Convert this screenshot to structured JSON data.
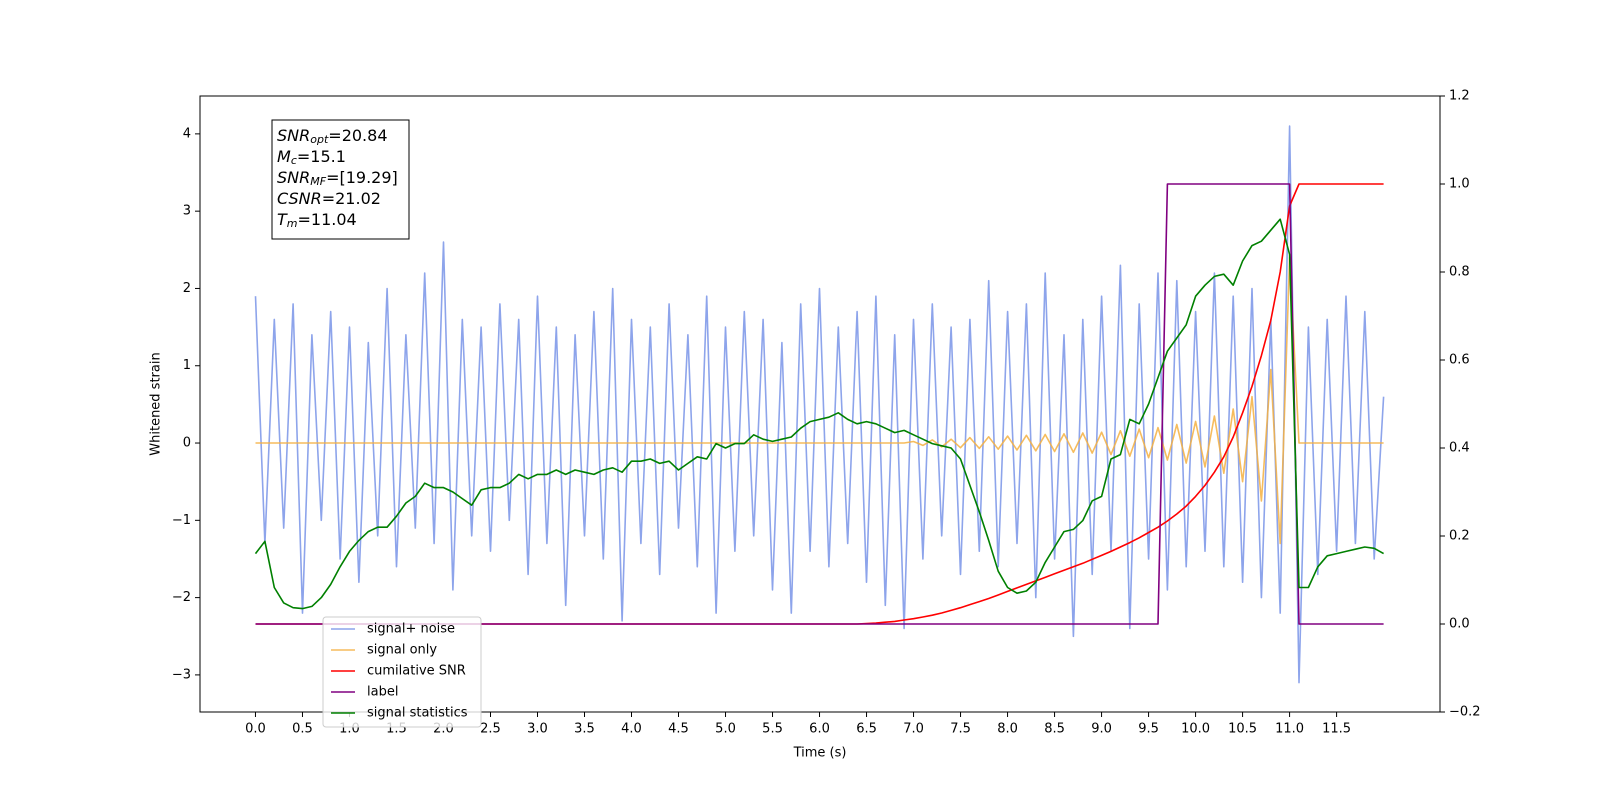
{
  "chart_data": {
    "type": "line",
    "xlabel": "Time (s)",
    "ylabel": "Whitened strain",
    "xlim": [
      -0.59,
      12.6
    ],
    "ylim": [
      -3.48,
      4.49
    ],
    "y2lim": [
      -0.2,
      1.2
    ],
    "xticks": [
      {
        "value": 0,
        "label": "0.0"
      },
      {
        "value": 0.5,
        "label": "0.5"
      },
      {
        "value": 1,
        "label": "1.0"
      },
      {
        "value": 1.5,
        "label": "1.5"
      },
      {
        "value": 2,
        "label": "2.0"
      },
      {
        "value": 2.5,
        "label": "2.5"
      },
      {
        "value": 3,
        "label": "3.0"
      },
      {
        "value": 3.5,
        "label": "3.5"
      },
      {
        "value": 4,
        "label": "4.0"
      },
      {
        "value": 4.5,
        "label": "4.5"
      },
      {
        "value": 5,
        "label": "5.0"
      },
      {
        "value": 5.5,
        "label": "5.5"
      },
      {
        "value": 6,
        "label": "6.0"
      },
      {
        "value": 6.5,
        "label": "6.5"
      },
      {
        "value": 7,
        "label": "7.0"
      },
      {
        "value": 7.5,
        "label": "7.5"
      },
      {
        "value": 8,
        "label": "8.0"
      },
      {
        "value": 8.5,
        "label": "8.5"
      },
      {
        "value": 9,
        "label": "9.0"
      },
      {
        "value": 9.5,
        "label": "9.5"
      },
      {
        "value": 10,
        "label": "10.0"
      },
      {
        "value": 10.5,
        "label": "10.5"
      },
      {
        "value": 11,
        "label": "11.0"
      },
      {
        "value": 11.5,
        "label": "11.5"
      }
    ],
    "yticks": [
      {
        "value": -3,
        "label": "−3"
      },
      {
        "value": -2,
        "label": "−2"
      },
      {
        "value": -1,
        "label": "−1"
      },
      0,
      1,
      2,
      3,
      4
    ],
    "y2ticks": [
      {
        "value": -0.2,
        "label": "−0.2"
      },
      {
        "value": 0,
        "label": "0.0"
      },
      0.2,
      0.4,
      0.6,
      0.8,
      {
        "value": 1,
        "label": "1.0"
      },
      1.2
    ],
    "annotations": [
      {
        "main": "SNR",
        "sub": "opt",
        "rest": "=20.84"
      },
      {
        "main": "M",
        "sub": "c",
        "rest": "=15.1"
      },
      {
        "main": "SNR",
        "sub": "MF",
        "rest": "=[19.29]"
      },
      {
        "main": "CSNR",
        "rest": "=21.02"
      },
      {
        "main": "T",
        "sub": "m",
        "rest": "=11.04"
      }
    ],
    "x": [
      0,
      0.1,
      0.2,
      0.3,
      0.4,
      0.5,
      0.6,
      0.7,
      0.8,
      0.9,
      1,
      1.1,
      1.2,
      1.3,
      1.4,
      1.5,
      1.6,
      1.7,
      1.8,
      1.9,
      2,
      2.1,
      2.2,
      2.3,
      2.4,
      2.5,
      2.6,
      2.7,
      2.8,
      2.9,
      3,
      3.1,
      3.2,
      3.3,
      3.4,
      3.5,
      3.6,
      3.7,
      3.8,
      3.9,
      4,
      4.1,
      4.2,
      4.3,
      4.4,
      4.5,
      4.6,
      4.7,
      4.8,
      4.9,
      5,
      5.1,
      5.2,
      5.3,
      5.4,
      5.5,
      5.6,
      5.7,
      5.8,
      5.9,
      6,
      6.1,
      6.2,
      6.3,
      6.4,
      6.5,
      6.6,
      6.7,
      6.8,
      6.9,
      7,
      7.1,
      7.2,
      7.3,
      7.4,
      7.5,
      7.6,
      7.7,
      7.8,
      7.9,
      8,
      8.1,
      8.2,
      8.3,
      8.4,
      8.5,
      8.6,
      8.7,
      8.8,
      8.9,
      9,
      9.1,
      9.2,
      9.3,
      9.4,
      9.5,
      9.6,
      9.7,
      9.8,
      9.9,
      10,
      10.1,
      10.2,
      10.3,
      10.4,
      10.5,
      10.6,
      10.7,
      10.8,
      10.9,
      11,
      11.1,
      11.2,
      11.3,
      11.4,
      11.5,
      11.6,
      11.7,
      11.8,
      11.9,
      12
    ],
    "series": [
      {
        "name": "signal+ noise",
        "color": "#7994e8",
        "axis": "y",
        "values": [
          1.9,
          -1.3,
          1.6,
          -1.1,
          1.8,
          -2.2,
          1.4,
          -1.0,
          1.7,
          -1.5,
          1.5,
          -1.8,
          1.3,
          -1.2,
          2.0,
          -1.6,
          1.4,
          -1.1,
          2.2,
          -1.3,
          2.6,
          -1.9,
          1.6,
          -1.2,
          1.5,
          -1.4,
          1.8,
          -1.0,
          1.6,
          -1.7,
          1.9,
          -1.3,
          1.5,
          -2.1,
          1.4,
          -1.2,
          1.7,
          -1.5,
          2.0,
          -2.3,
          1.6,
          -1.3,
          1.5,
          -1.7,
          1.8,
          -1.1,
          1.4,
          -1.6,
          1.9,
          -2.2,
          1.5,
          -1.4,
          1.7,
          -1.2,
          1.6,
          -1.9,
          1.3,
          -2.2,
          1.8,
          -1.4,
          2.0,
          -1.6,
          1.5,
          -1.3,
          1.7,
          -1.8,
          1.9,
          -2.1,
          1.4,
          -2.4,
          1.6,
          -1.5,
          1.8,
          -1.2,
          1.5,
          -1.7,
          1.6,
          -1.4,
          2.1,
          -1.6,
          1.7,
          -1.3,
          1.8,
          -2.0,
          2.2,
          -1.5,
          1.4,
          -2.5,
          1.6,
          -1.7,
          1.9,
          -1.4,
          2.3,
          -2.4,
          1.8,
          -1.5,
          2.2,
          -1.9,
          2.1,
          -1.6,
          1.7,
          -1.4,
          2.2,
          -1.6,
          1.9,
          -1.8,
          2.0,
          -2.0,
          1.6,
          -2.2,
          4.1,
          -3.1,
          1.5,
          -1.7,
          1.6,
          -1.4,
          1.9,
          -1.3,
          1.7,
          -1.5,
          0.6
        ]
      },
      {
        "name": "signal only",
        "color": "#f5b041",
        "axis": "y",
        "values": [
          0,
          0,
          0,
          0,
          0,
          0,
          0,
          0,
          0,
          0,
          0,
          0,
          0,
          0,
          0,
          0,
          0,
          0,
          0,
          0,
          0,
          0,
          0,
          0,
          0,
          0,
          0,
          0,
          0,
          0,
          0,
          0,
          0,
          0,
          0,
          0,
          0,
          0,
          0,
          0,
          0,
          0,
          0,
          0,
          0,
          0,
          0,
          0,
          0,
          0,
          0,
          0,
          0,
          0,
          0,
          0,
          0,
          0,
          0,
          0,
          0,
          0,
          0,
          0,
          0,
          0,
          0,
          0,
          0,
          0,
          0.02,
          -0.03,
          0.04,
          -0.05,
          0.05,
          -0.06,
          0.07,
          -0.07,
          0.08,
          -0.08,
          0.09,
          -0.09,
          0.1,
          -0.1,
          0.11,
          -0.11,
          0.12,
          -0.12,
          0.13,
          -0.13,
          0.14,
          -0.15,
          0.16,
          -0.17,
          0.18,
          -0.19,
          0.2,
          -0.22,
          0.24,
          -0.26,
          0.28,
          -0.31,
          0.35,
          -0.39,
          0.44,
          -0.5,
          0.6,
          -0.75,
          0.95,
          -1.3,
          2.4,
          0,
          0,
          0,
          0,
          0,
          0,
          0,
          0,
          0,
          0
        ]
      },
      {
        "name": "cumilative SNR",
        "color": "#ff0000",
        "axis": "y2",
        "values": [
          0,
          0,
          0,
          0,
          0,
          0,
          0,
          0,
          0,
          0,
          0,
          0,
          0,
          0,
          0,
          0,
          0,
          0,
          0,
          0,
          0,
          0,
          0,
          0,
          0,
          0,
          0,
          0,
          0,
          0,
          0,
          0,
          0,
          0,
          0,
          0,
          0,
          0,
          0,
          0,
          0,
          0,
          0,
          0,
          0,
          0,
          0,
          0,
          0,
          0,
          0,
          0,
          0,
          0,
          0,
          0,
          0,
          0,
          0,
          0,
          0,
          0,
          0,
          0,
          0,
          0.001,
          0.002,
          0.004,
          0.006,
          0.009,
          0.012,
          0.016,
          0.02,
          0.025,
          0.031,
          0.037,
          0.044,
          0.051,
          0.058,
          0.066,
          0.074,
          0.082,
          0.09,
          0.098,
          0.106,
          0.114,
          0.122,
          0.13,
          0.138,
          0.147,
          0.156,
          0.165,
          0.175,
          0.185,
          0.196,
          0.208,
          0.22,
          0.234,
          0.25,
          0.268,
          0.29,
          0.315,
          0.345,
          0.38,
          0.425,
          0.48,
          0.54,
          0.61,
          0.69,
          0.8,
          0.95,
          1,
          1,
          1,
          1,
          1,
          1,
          1,
          1,
          1,
          1
        ]
      },
      {
        "name": "label",
        "color": "#800080",
        "axis": "y2",
        "values": [
          0,
          0,
          0,
          0,
          0,
          0,
          0,
          0,
          0,
          0,
          0,
          0,
          0,
          0,
          0,
          0,
          0,
          0,
          0,
          0,
          0,
          0,
          0,
          0,
          0,
          0,
          0,
          0,
          0,
          0,
          0,
          0,
          0,
          0,
          0,
          0,
          0,
          0,
          0,
          0,
          0,
          0,
          0,
          0,
          0,
          0,
          0,
          0,
          0,
          0,
          0,
          0,
          0,
          0,
          0,
          0,
          0,
          0,
          0,
          0,
          0,
          0,
          0,
          0,
          0,
          0,
          0,
          0,
          0,
          0,
          0,
          0,
          0,
          0,
          0,
          0,
          0,
          0,
          0,
          0,
          0,
          0,
          0,
          0,
          0,
          0,
          0,
          0,
          0,
          0,
          0,
          0,
          0,
          0,
          0,
          0,
          0,
          1,
          1,
          1,
          1,
          1,
          1,
          1,
          1,
          1,
          1,
          1,
          1,
          1,
          1,
          0,
          0,
          0,
          0,
          0,
          0,
          0,
          0,
          0,
          0
        ]
      },
      {
        "name": "signal statistics",
        "color": "#008000",
        "axis": "y2",
        "values": [
          0.16,
          0.188,
          0.083,
          0.048,
          0.037,
          0.035,
          0.04,
          0.06,
          0.09,
          0.13,
          0.165,
          0.19,
          0.21,
          0.22,
          0.22,
          0.245,
          0.275,
          0.29,
          0.32,
          0.31,
          0.31,
          0.3,
          0.285,
          0.27,
          0.305,
          0.31,
          0.31,
          0.32,
          0.34,
          0.33,
          0.34,
          0.34,
          0.35,
          0.34,
          0.35,
          0.345,
          0.34,
          0.35,
          0.355,
          0.345,
          0.37,
          0.37,
          0.375,
          0.365,
          0.37,
          0.35,
          0.365,
          0.38,
          0.375,
          0.41,
          0.4,
          0.41,
          0.41,
          0.43,
          0.42,
          0.415,
          0.42,
          0.425,
          0.445,
          0.46,
          0.465,
          0.47,
          0.48,
          0.465,
          0.455,
          0.46,
          0.455,
          0.445,
          0.435,
          0.44,
          0.43,
          0.42,
          0.41,
          0.405,
          0.4,
          0.375,
          0.315,
          0.255,
          0.19,
          0.12,
          0.083,
          0.07,
          0.075,
          0.095,
          0.14,
          0.175,
          0.21,
          0.215,
          0.235,
          0.28,
          0.29,
          0.375,
          0.385,
          0.465,
          0.455,
          0.5,
          0.56,
          0.62,
          0.65,
          0.68,
          0.745,
          0.77,
          0.79,
          0.795,
          0.77,
          0.825,
          0.86,
          0.87,
          0.895,
          0.92,
          0.84,
          0.083,
          0.083,
          0.13,
          0.155,
          0.16,
          0.165,
          0.17,
          0.175,
          0.172,
          0.16
        ]
      }
    ]
  }
}
